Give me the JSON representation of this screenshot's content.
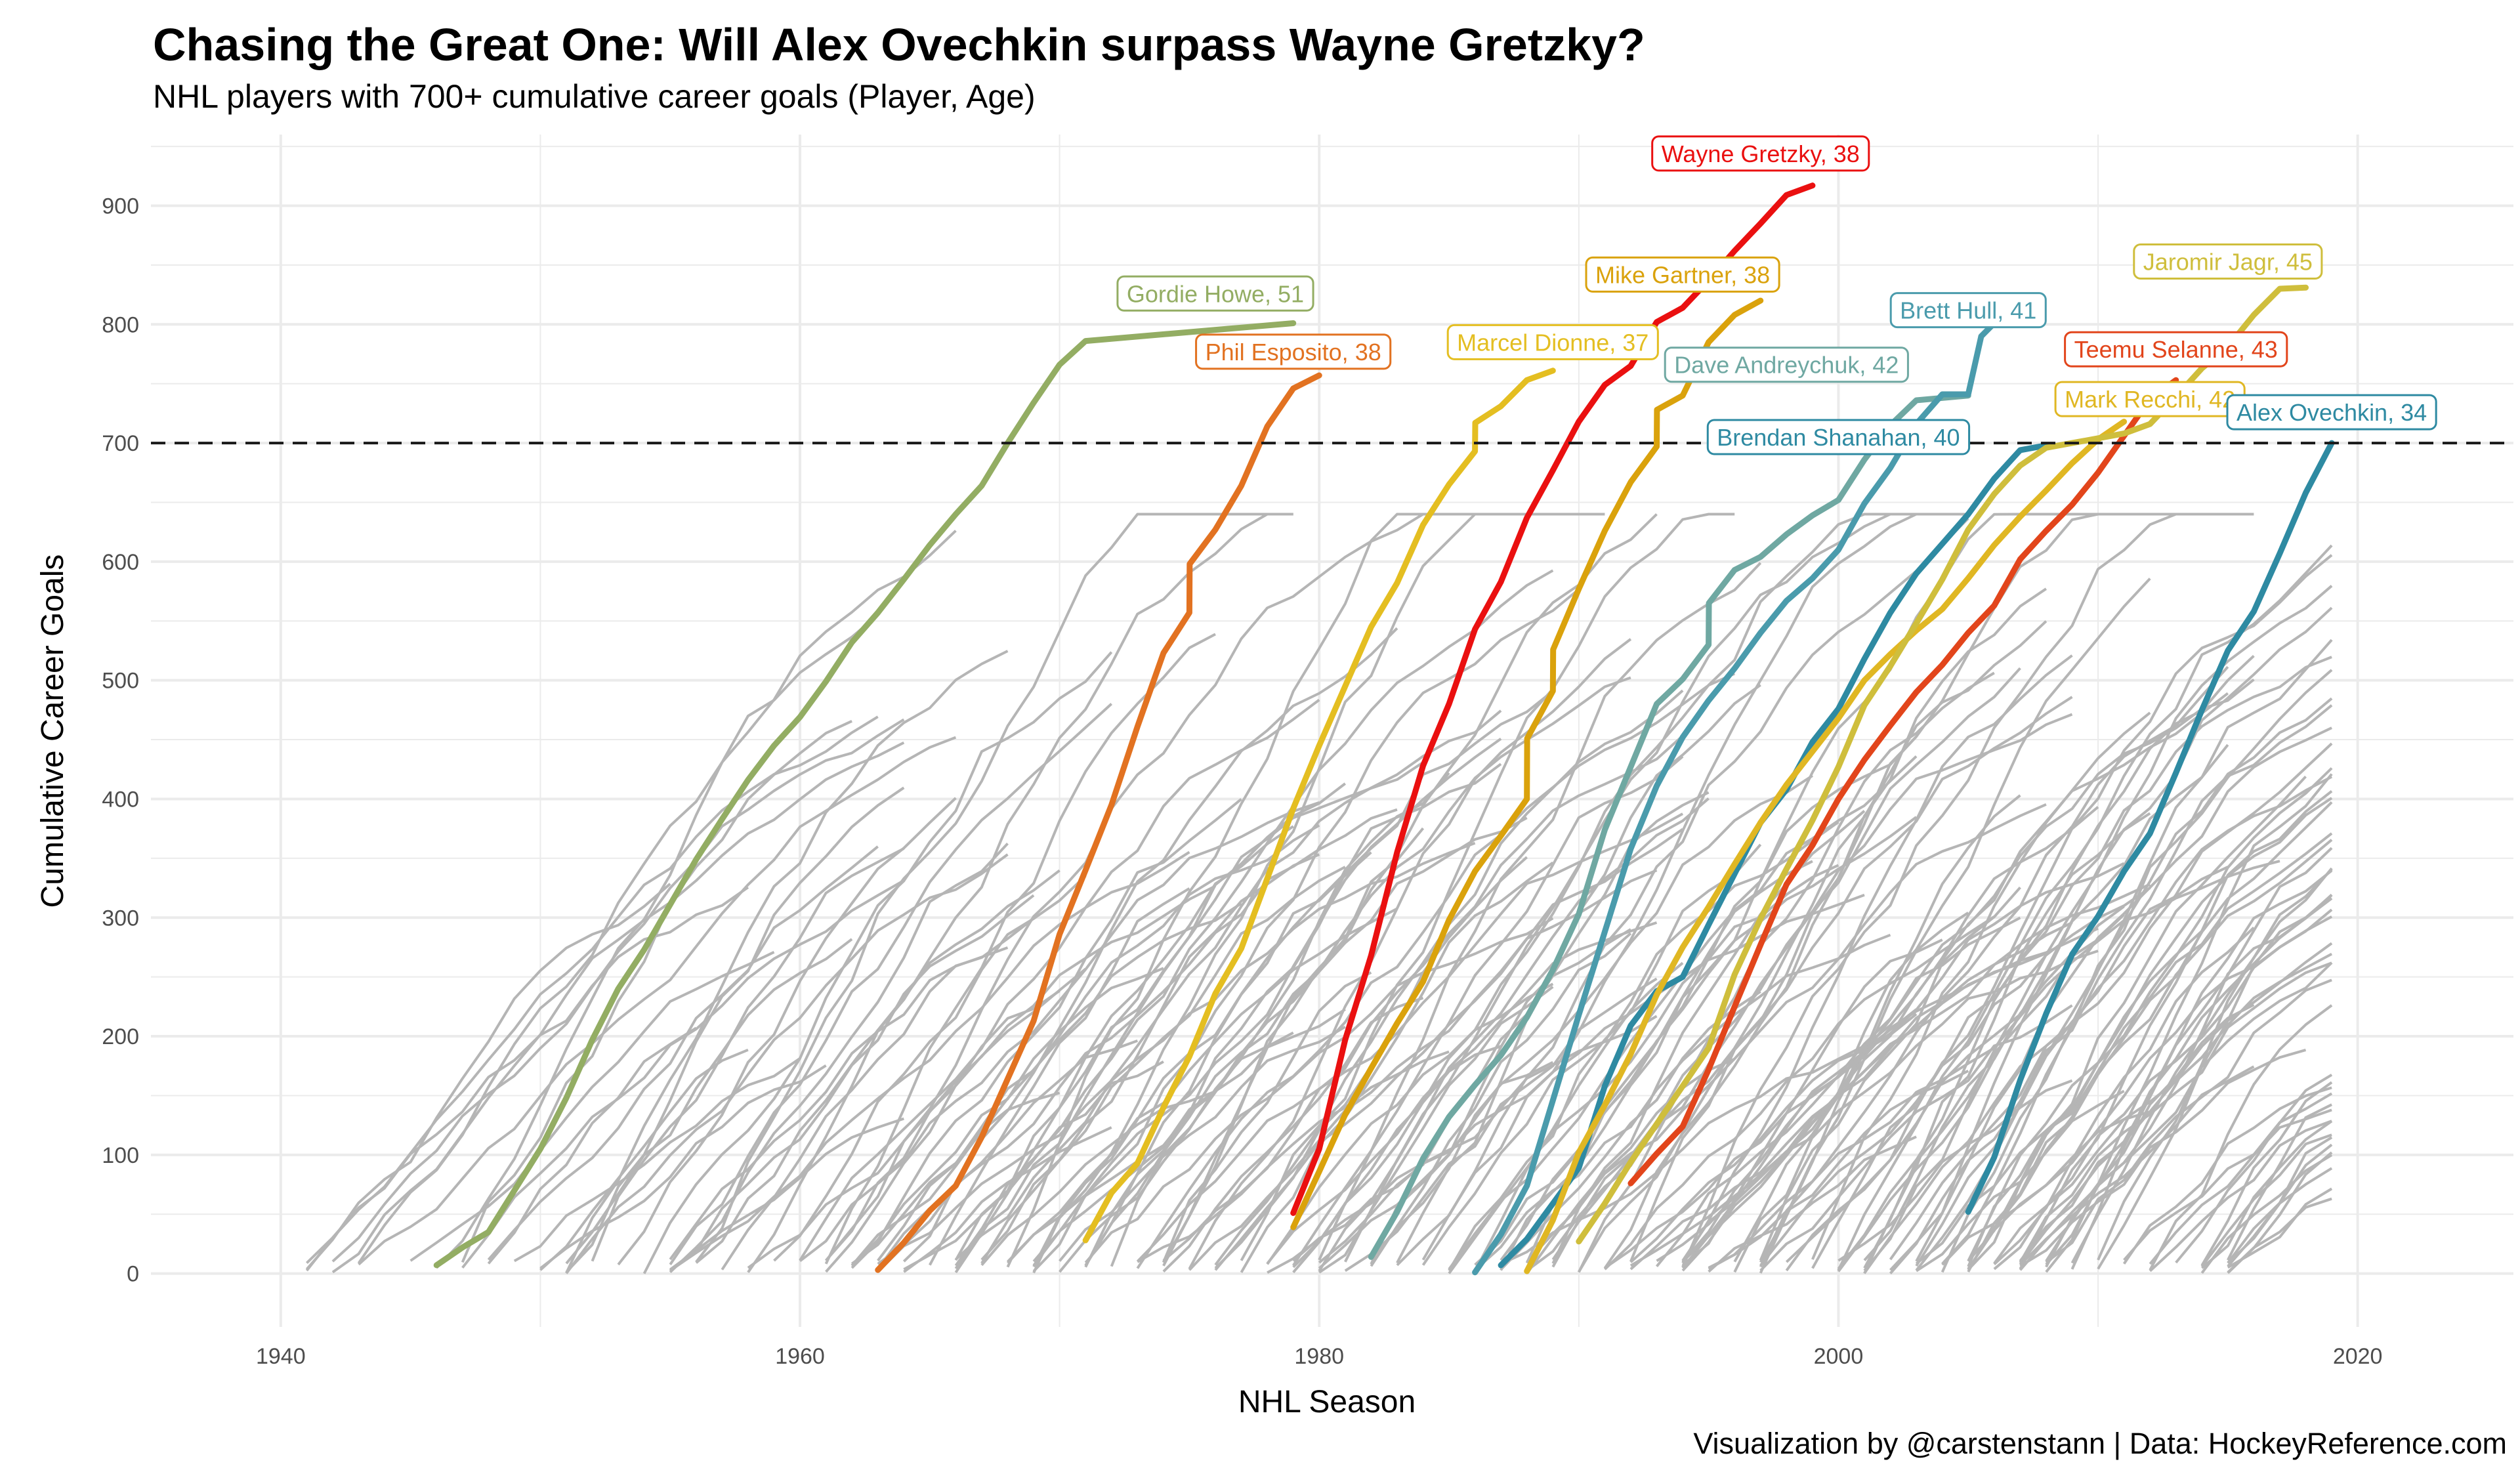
{
  "title": "Chasing the Great One: Will Alex Ovechkin surpass Wayne Gretzky?",
  "subtitle": "NHL players with 700+ cumulative career goals (Player, Age)",
  "caption": "Visualization by @carstenstann | Data: HockeyReference.com",
  "chart_data": {
    "type": "line",
    "xlabel": "NHL Season",
    "ylabel": "Cumulative Career Goals",
    "xlim": [
      1935,
      2026
    ],
    "ylim": [
      -45,
      960
    ],
    "x_ticks": [
      "1940",
      "1960",
      "1980",
      "2000",
      "2020"
    ],
    "y_ticks": [
      "0",
      "100",
      "200",
      "300",
      "400",
      "500",
      "600",
      "700",
      "800",
      "900"
    ],
    "grid": true,
    "reference_line": {
      "y": 700,
      "style": "dashed"
    },
    "highlighted_series": [
      {
        "label": "Gordie Howe, 51",
        "color": "#93ad63",
        "points": [
          [
            1946,
            7
          ],
          [
            1947,
            22
          ],
          [
            1948,
            35
          ],
          [
            1949,
            70
          ],
          [
            1950,
            105
          ],
          [
            1951,
            148
          ],
          [
            1952,
            197
          ],
          [
            1953,
            240
          ],
          [
            1954,
            273
          ],
          [
            1955,
            311
          ],
          [
            1956,
            349
          ],
          [
            1957,
            383
          ],
          [
            1958,
            416
          ],
          [
            1959,
            445
          ],
          [
            1960,
            469
          ],
          [
            1961,
            499
          ],
          [
            1962,
            532
          ],
          [
            1963,
            557
          ],
          [
            1964,
            585
          ],
          [
            1965,
            614
          ],
          [
            1966,
            640
          ],
          [
            1967,
            664
          ],
          [
            1968,
            700
          ],
          [
            1969,
            734
          ],
          [
            1970,
            766
          ],
          [
            1971,
            786
          ],
          [
            1979,
            801
          ]
        ]
      },
      {
        "label": "Phil Esposito, 38",
        "color": "#e27221",
        "points": [
          [
            1963,
            3
          ],
          [
            1964,
            26
          ],
          [
            1965,
            53
          ],
          [
            1966,
            74
          ],
          [
            1967,
            115
          ],
          [
            1968,
            164
          ],
          [
            1969,
            213
          ],
          [
            1970,
            286
          ],
          [
            1971,
            340
          ],
          [
            1972,
            395
          ],
          [
            1973,
            461
          ],
          [
            1974,
            523
          ],
          [
            1975,
            557
          ],
          [
            1975.01,
            598
          ],
          [
            1976,
            627
          ],
          [
            1977,
            664
          ],
          [
            1978,
            714
          ],
          [
            1979,
            746
          ],
          [
            1980,
            757
          ]
        ]
      },
      {
        "label": "Marcel Dionne, 37",
        "color": "#e4be21",
        "points": [
          [
            1971,
            28
          ],
          [
            1972,
            68
          ],
          [
            1973,
            93
          ],
          [
            1974,
            140
          ],
          [
            1975,
            183
          ],
          [
            1976,
            236
          ],
          [
            1977,
            274
          ],
          [
            1978,
            333
          ],
          [
            1979,
            392
          ],
          [
            1980,
            445
          ],
          [
            1981,
            495
          ],
          [
            1982,
            545
          ],
          [
            1983,
            582
          ],
          [
            1984,
            631
          ],
          [
            1985,
            665
          ],
          [
            1986,
            693
          ],
          [
            1986.01,
            717
          ],
          [
            1987,
            731
          ],
          [
            1988,
            753
          ],
          [
            1989,
            761
          ]
        ]
      },
      {
        "label": "Wayne Gretzky, 38",
        "color": "#ea1010",
        "points": [
          [
            1979,
            51
          ],
          [
            1980,
            105
          ],
          [
            1981,
            197
          ],
          [
            1982,
            268
          ],
          [
            1983,
            355
          ],
          [
            1984,
            428
          ],
          [
            1985,
            480
          ],
          [
            1986,
            543
          ],
          [
            1987,
            583
          ],
          [
            1988,
            637
          ],
          [
            1989,
            677
          ],
          [
            1990,
            718
          ],
          [
            1991,
            749
          ],
          [
            1992,
            765
          ],
          [
            1993,
            802
          ],
          [
            1994,
            814
          ],
          [
            1995,
            837
          ],
          [
            1996,
            862
          ],
          [
            1997,
            885
          ],
          [
            1998,
            909
          ],
          [
            1999,
            917
          ]
        ]
      },
      {
        "label": "Mike Gartner, 38",
        "color": "#daa20c",
        "points": [
          [
            1979,
            39
          ],
          [
            1980,
            86
          ],
          [
            1981,
            134
          ],
          [
            1982,
            173
          ],
          [
            1983,
            211
          ],
          [
            1984,
            246
          ],
          [
            1985,
            298
          ],
          [
            1986,
            339
          ],
          [
            1987,
            369
          ],
          [
            1988,
            400
          ],
          [
            1988.01,
            451
          ],
          [
            1989,
            491
          ],
          [
            1989.01,
            526
          ],
          [
            1990,
            577
          ],
          [
            1991,
            626
          ],
          [
            1992,
            667
          ],
          [
            1993,
            697
          ],
          [
            1993.01,
            728
          ],
          [
            1994,
            740
          ],
          [
            1995,
            785
          ],
          [
            1996,
            808
          ],
          [
            1997,
            820
          ]
        ]
      },
      {
        "label": "Dave Andreychuk, 42",
        "color": "#6fa8a2",
        "points": [
          [
            1982,
            14
          ],
          [
            1983,
            52
          ],
          [
            1984,
            97
          ],
          [
            1985,
            132
          ],
          [
            1986,
            159
          ],
          [
            1987,
            184
          ],
          [
            1988,
            216
          ],
          [
            1989,
            256
          ],
          [
            1990,
            303
          ],
          [
            1991,
            374
          ],
          [
            1992,
            427
          ],
          [
            1993,
            480
          ],
          [
            1994,
            501
          ],
          [
            1995,
            530
          ],
          [
            1995.01,
            565
          ],
          [
            1996,
            593
          ],
          [
            1997,
            604
          ],
          [
            1998,
            623
          ],
          [
            1999,
            639
          ],
          [
            2000,
            652
          ],
          [
            2001,
            686
          ],
          [
            2002,
            715
          ],
          [
            2003,
            736
          ],
          [
            2005,
            740
          ]
        ]
      },
      {
        "label": "Brett Hull, 41",
        "color": "#4a9bac",
        "points": [
          [
            1986,
            1
          ],
          [
            1987,
            33
          ],
          [
            1988,
            74
          ],
          [
            1989,
            146
          ],
          [
            1990,
            218
          ],
          [
            1991,
            288
          ],
          [
            1992,
            358
          ],
          [
            1993,
            411
          ],
          [
            1994,
            452
          ],
          [
            1995,
            483
          ],
          [
            1996,
            510
          ],
          [
            1997,
            540
          ],
          [
            1998,
            567
          ],
          [
            1999,
            586
          ],
          [
            2000,
            610
          ],
          [
            2001,
            649
          ],
          [
            2002,
            679
          ],
          [
            2003,
            716
          ],
          [
            2004,
            741
          ],
          [
            2005,
            741
          ],
          [
            2005.5,
            790
          ],
          [
            2006,
            801
          ]
        ]
      },
      {
        "label": "Brendan Shanahan, 40",
        "color": "#2e8aa2",
        "points": [
          [
            1987,
            7
          ],
          [
            1988,
            29
          ],
          [
            1989,
            59
          ],
          [
            1990,
            89
          ],
          [
            1991,
            158
          ],
          [
            1992,
            209
          ],
          [
            1993,
            238
          ],
          [
            1994,
            250
          ],
          [
            1995,
            294
          ],
          [
            1996,
            337
          ],
          [
            1997,
            380
          ],
          [
            1998,
            408
          ],
          [
            1999,
            448
          ],
          [
            2000,
            476
          ],
          [
            2001,
            518
          ],
          [
            2002,
            557
          ],
          [
            2003,
            590
          ],
          [
            2004,
            615
          ],
          [
            2005,
            640
          ],
          [
            2006,
            670
          ],
          [
            2007,
            694
          ],
          [
            2008,
            698
          ]
        ]
      },
      {
        "label": "Mark Recchi, 42",
        "color": "#e0b723",
        "points": [
          [
            1988,
            2
          ],
          [
            1989,
            45
          ],
          [
            1990,
            102
          ],
          [
            1991,
            142
          ],
          [
            1992,
            185
          ],
          [
            1993,
            235
          ],
          [
            1994,
            275
          ],
          [
            1995,
            309
          ],
          [
            1996,
            345
          ],
          [
            1997,
            380
          ],
          [
            1998,
            412
          ],
          [
            1999,
            440
          ],
          [
            2000,
            468
          ],
          [
            2001,
            500
          ],
          [
            2002,
            522
          ],
          [
            2003,
            542
          ],
          [
            2004,
            560
          ],
          [
            2005,
            586
          ],
          [
            2006,
            614
          ],
          [
            2007,
            638
          ],
          [
            2008,
            660
          ],
          [
            2009,
            683
          ],
          [
            2010,
            703
          ],
          [
            2011,
            718
          ]
        ]
      },
      {
        "label": "Teemu Selanne, 43",
        "color": "#e2451b",
        "points": [
          [
            1992,
            76
          ],
          [
            1993,
            101
          ],
          [
            1994,
            124
          ],
          [
            1995,
            172
          ],
          [
            1996,
            225
          ],
          [
            1997,
            277
          ],
          [
            1998,
            328
          ],
          [
            1999,
            361
          ],
          [
            2000,
            400
          ],
          [
            2001,
            433
          ],
          [
            2002,
            462
          ],
          [
            2003,
            490
          ],
          [
            2004,
            513
          ],
          [
            2005,
            540
          ],
          [
            2006,
            563
          ],
          [
            2007,
            602
          ],
          [
            2008,
            626
          ],
          [
            2009,
            648
          ],
          [
            2010,
            675
          ],
          [
            2011,
            706
          ],
          [
            2012,
            737
          ],
          [
            2013,
            753
          ]
        ]
      },
      {
        "label": "Jaromir Jagr, 45",
        "color": "#cfbe3c",
        "points": [
          [
            1990,
            27
          ],
          [
            1991,
            59
          ],
          [
            1992,
            94
          ],
          [
            1993,
            126
          ],
          [
            1994,
            158
          ],
          [
            1995,
            190
          ],
          [
            1996,
            252
          ],
          [
            1997,
            299
          ],
          [
            1998,
            341
          ],
          [
            1999,
            382
          ],
          [
            2000,
            427
          ],
          [
            2001,
            479
          ],
          [
            2002,
            512
          ],
          [
            2003,
            548
          ],
          [
            2004,
            585
          ],
          [
            2005,
            627
          ],
          [
            2006,
            657
          ],
          [
            2007,
            681
          ],
          [
            2008,
            696
          ],
          [
            2009,
            700
          ],
          [
            2011,
            708
          ],
          [
            2012,
            716
          ],
          [
            2013,
            739
          ],
          [
            2014,
            763
          ],
          [
            2015,
            781
          ],
          [
            2016,
            808
          ],
          [
            2017,
            830
          ],
          [
            2018,
            831
          ]
        ]
      },
      {
        "label": "Alex Ovechkin, 34",
        "color": "#2e8aa2",
        "points": [
          [
            2005,
            52
          ],
          [
            2006,
            98
          ],
          [
            2007,
            163
          ],
          [
            2008,
            219
          ],
          [
            2009,
            269
          ],
          [
            2010,
            301
          ],
          [
            2011,
            339
          ],
          [
            2012,
            371
          ],
          [
            2013,
            422
          ],
          [
            2014,
            475
          ],
          [
            2015,
            525
          ],
          [
            2016,
            558
          ],
          [
            2017,
            607
          ],
          [
            2018,
            658
          ],
          [
            2019,
            700
          ]
        ]
      }
    ],
    "label_positions": [
      {
        "label": "Gordie Howe, 51",
        "x": 1976,
        "y": 826
      },
      {
        "label": "Phil Esposito, 38",
        "x": 1979,
        "y": 777
      },
      {
        "label": "Marcel Dionne, 37",
        "x": 1989,
        "y": 785
      },
      {
        "label": "Wayne Gretzky, 38",
        "x": 1997,
        "y": 944
      },
      {
        "label": "Mike Gartner, 38",
        "x": 1994,
        "y": 842
      },
      {
        "label": "Dave Andreychuk, 42",
        "x": 1998,
        "y": 766
      },
      {
        "label": "Brett Hull, 41",
        "x": 2005,
        "y": 812
      },
      {
        "label": "Brendan Shanahan, 40",
        "x": 2000,
        "y": 705
      },
      {
        "label": "Mark Recchi, 42",
        "x": 2012,
        "y": 737
      },
      {
        "label": "Teemu Selanne, 43",
        "x": 2013,
        "y": 779
      },
      {
        "label": "Jaromir Jagr, 45",
        "x": 2015,
        "y": 853
      },
      {
        "label": "Alex Ovechkin, 34",
        "x": 2019,
        "y": 726
      }
    ],
    "background_color": "#b5b5b5"
  }
}
